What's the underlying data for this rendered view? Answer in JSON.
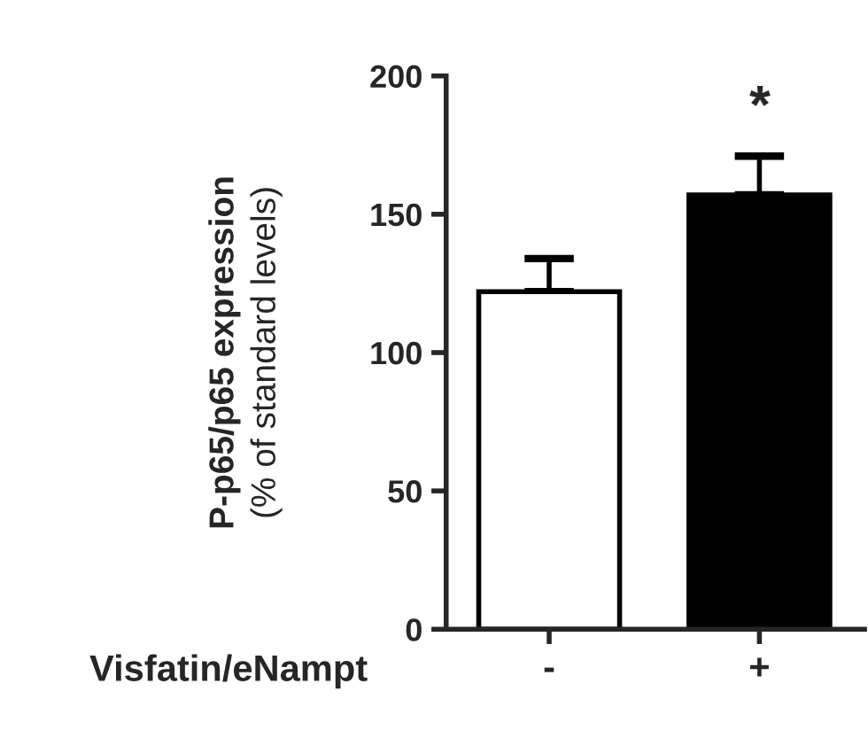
{
  "chart_data": {
    "type": "bar",
    "categories": [
      "-",
      "+"
    ],
    "xlabel": "Visfatin/eNampt",
    "ylabel": "P-p65/p65 expression\n(% of standard levels)",
    "values": [
      122,
      157
    ],
    "colors": [
      "#ffffff",
      "#000000"
    ],
    "errors": [
      12,
      14
    ],
    "ylim": [
      0,
      200
    ],
    "yticks": [
      0,
      50,
      100,
      150,
      200
    ],
    "grid": false,
    "legend": false,
    "annotations": [
      "*"
    ]
  }
}
